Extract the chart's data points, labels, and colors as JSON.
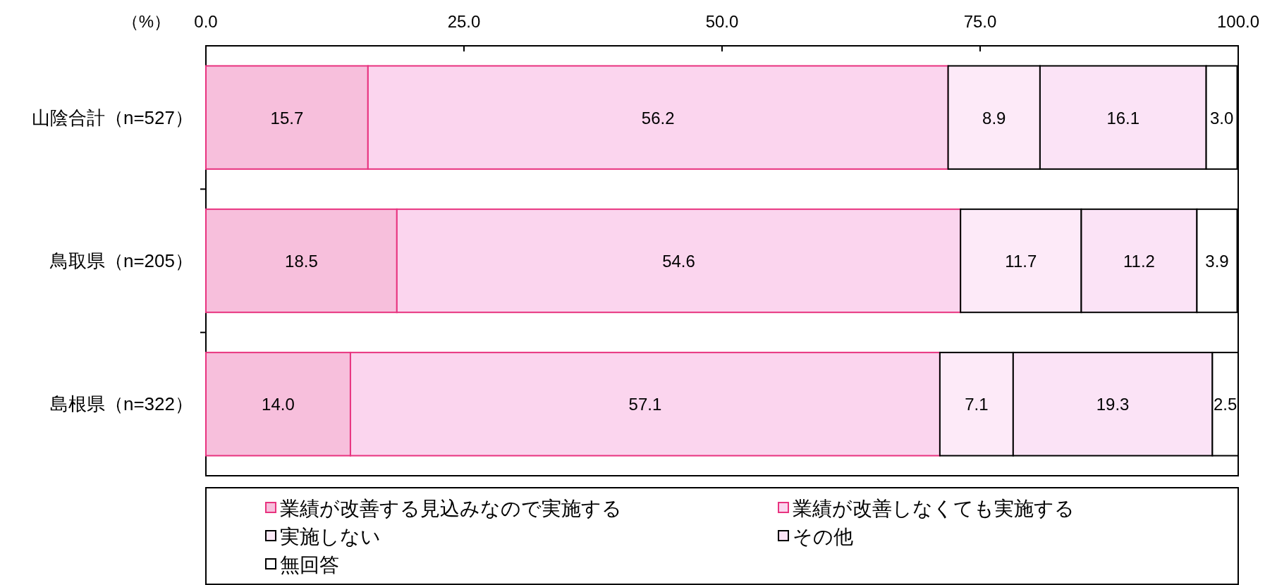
{
  "chart_data": {
    "type": "bar",
    "orientation": "horizontal",
    "stacked": true,
    "xlabel": "（%）",
    "categories": [
      "山陰合計（n=527）",
      "鳥取県（n=205）",
      "島根県（n=322）"
    ],
    "xlim": [
      0,
      100
    ],
    "xticks": [
      {
        "value": 0,
        "label": "0.0"
      },
      {
        "value": 25,
        "label": "25.0"
      },
      {
        "value": 50,
        "label": "50.0"
      },
      {
        "value": 75,
        "label": "75.0"
      },
      {
        "value": 100,
        "label": "100.0"
      }
    ],
    "series": [
      {
        "name": "業績が改善する見込みなので実施する",
        "color": "#f7bfdc",
        "values": [
          15.7,
          18.5,
          14.0
        ],
        "value_labels": [
          "15.7",
          "18.5",
          "14.0"
        ]
      },
      {
        "name": "業績が改善しなくても実施する",
        "color": "#fbd5ee",
        "values": [
          56.2,
          54.6,
          57.1
        ],
        "value_labels": [
          "56.2",
          "54.6",
          "57.1"
        ]
      },
      {
        "name": "実施しない",
        "color": "#fdeaf8",
        "values": [
          8.9,
          11.7,
          7.1
        ],
        "value_labels": [
          "8.9",
          "11.7",
          "7.1"
        ]
      },
      {
        "name": "その他",
        "color": "#fbe3f6",
        "values": [
          16.1,
          11.2,
          19.3
        ],
        "value_labels": [
          "16.1",
          "11.2",
          "19.3"
        ]
      },
      {
        "name": "無回答",
        "color": "#ffffff",
        "values": [
          3.0,
          3.9,
          2.5
        ],
        "value_labels": [
          "3.0",
          "3.9",
          "2.5"
        ]
      }
    ],
    "legend": "bottom",
    "grid": false
  }
}
